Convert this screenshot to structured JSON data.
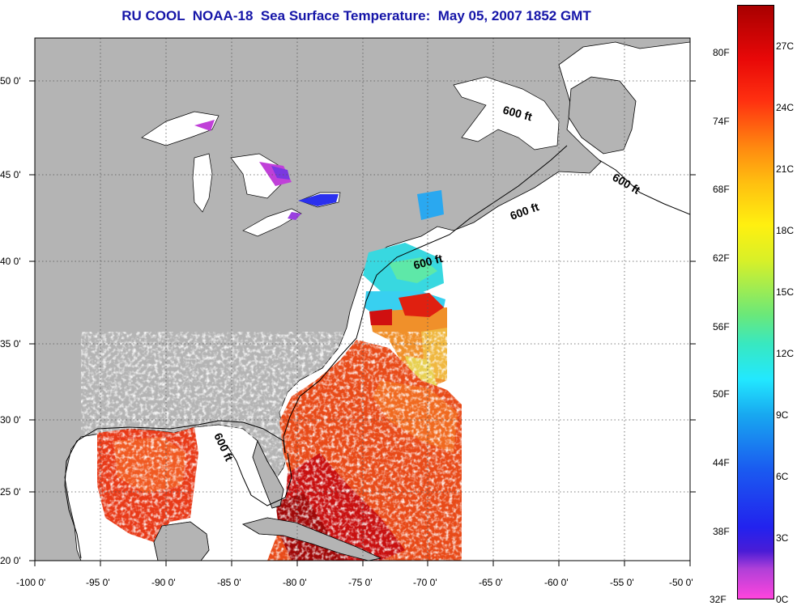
{
  "title": "RU COOL  NOAA-18  Sea Surface Temperature:  May 05, 2007 1852 GMT",
  "map": {
    "lon_labels": [
      "-100 0'",
      "-95 0'",
      "-90 0'",
      "-85 0'",
      "-80 0'",
      "-75 0'",
      "-70 0'",
      "-65 0'",
      "-60 0'",
      "-55 0'",
      "-50 0'"
    ],
    "lat_labels": [
      "50 0'",
      "45 0'",
      "40 0'",
      "35 0'",
      "30 0'",
      "25 0'",
      "20 0'"
    ],
    "contour_labels": [
      "600 ft",
      "600 ft",
      "600 ft",
      "600 ft",
      "600 ft"
    ],
    "colors": {
      "land": "#b4b4b4",
      "ocean_no_data": "#ffffff",
      "grid": "#555555"
    }
  },
  "colorbar": {
    "fahrenheit_labels": [
      "80F",
      "74F",
      "68F",
      "62F",
      "56F",
      "50F",
      "44F",
      "38F",
      "32F"
    ],
    "celsius_labels": [
      "27C",
      "24C",
      "21C",
      "18C",
      "15C",
      "12C",
      "9C",
      "6C",
      "3C",
      "0C"
    ]
  }
}
